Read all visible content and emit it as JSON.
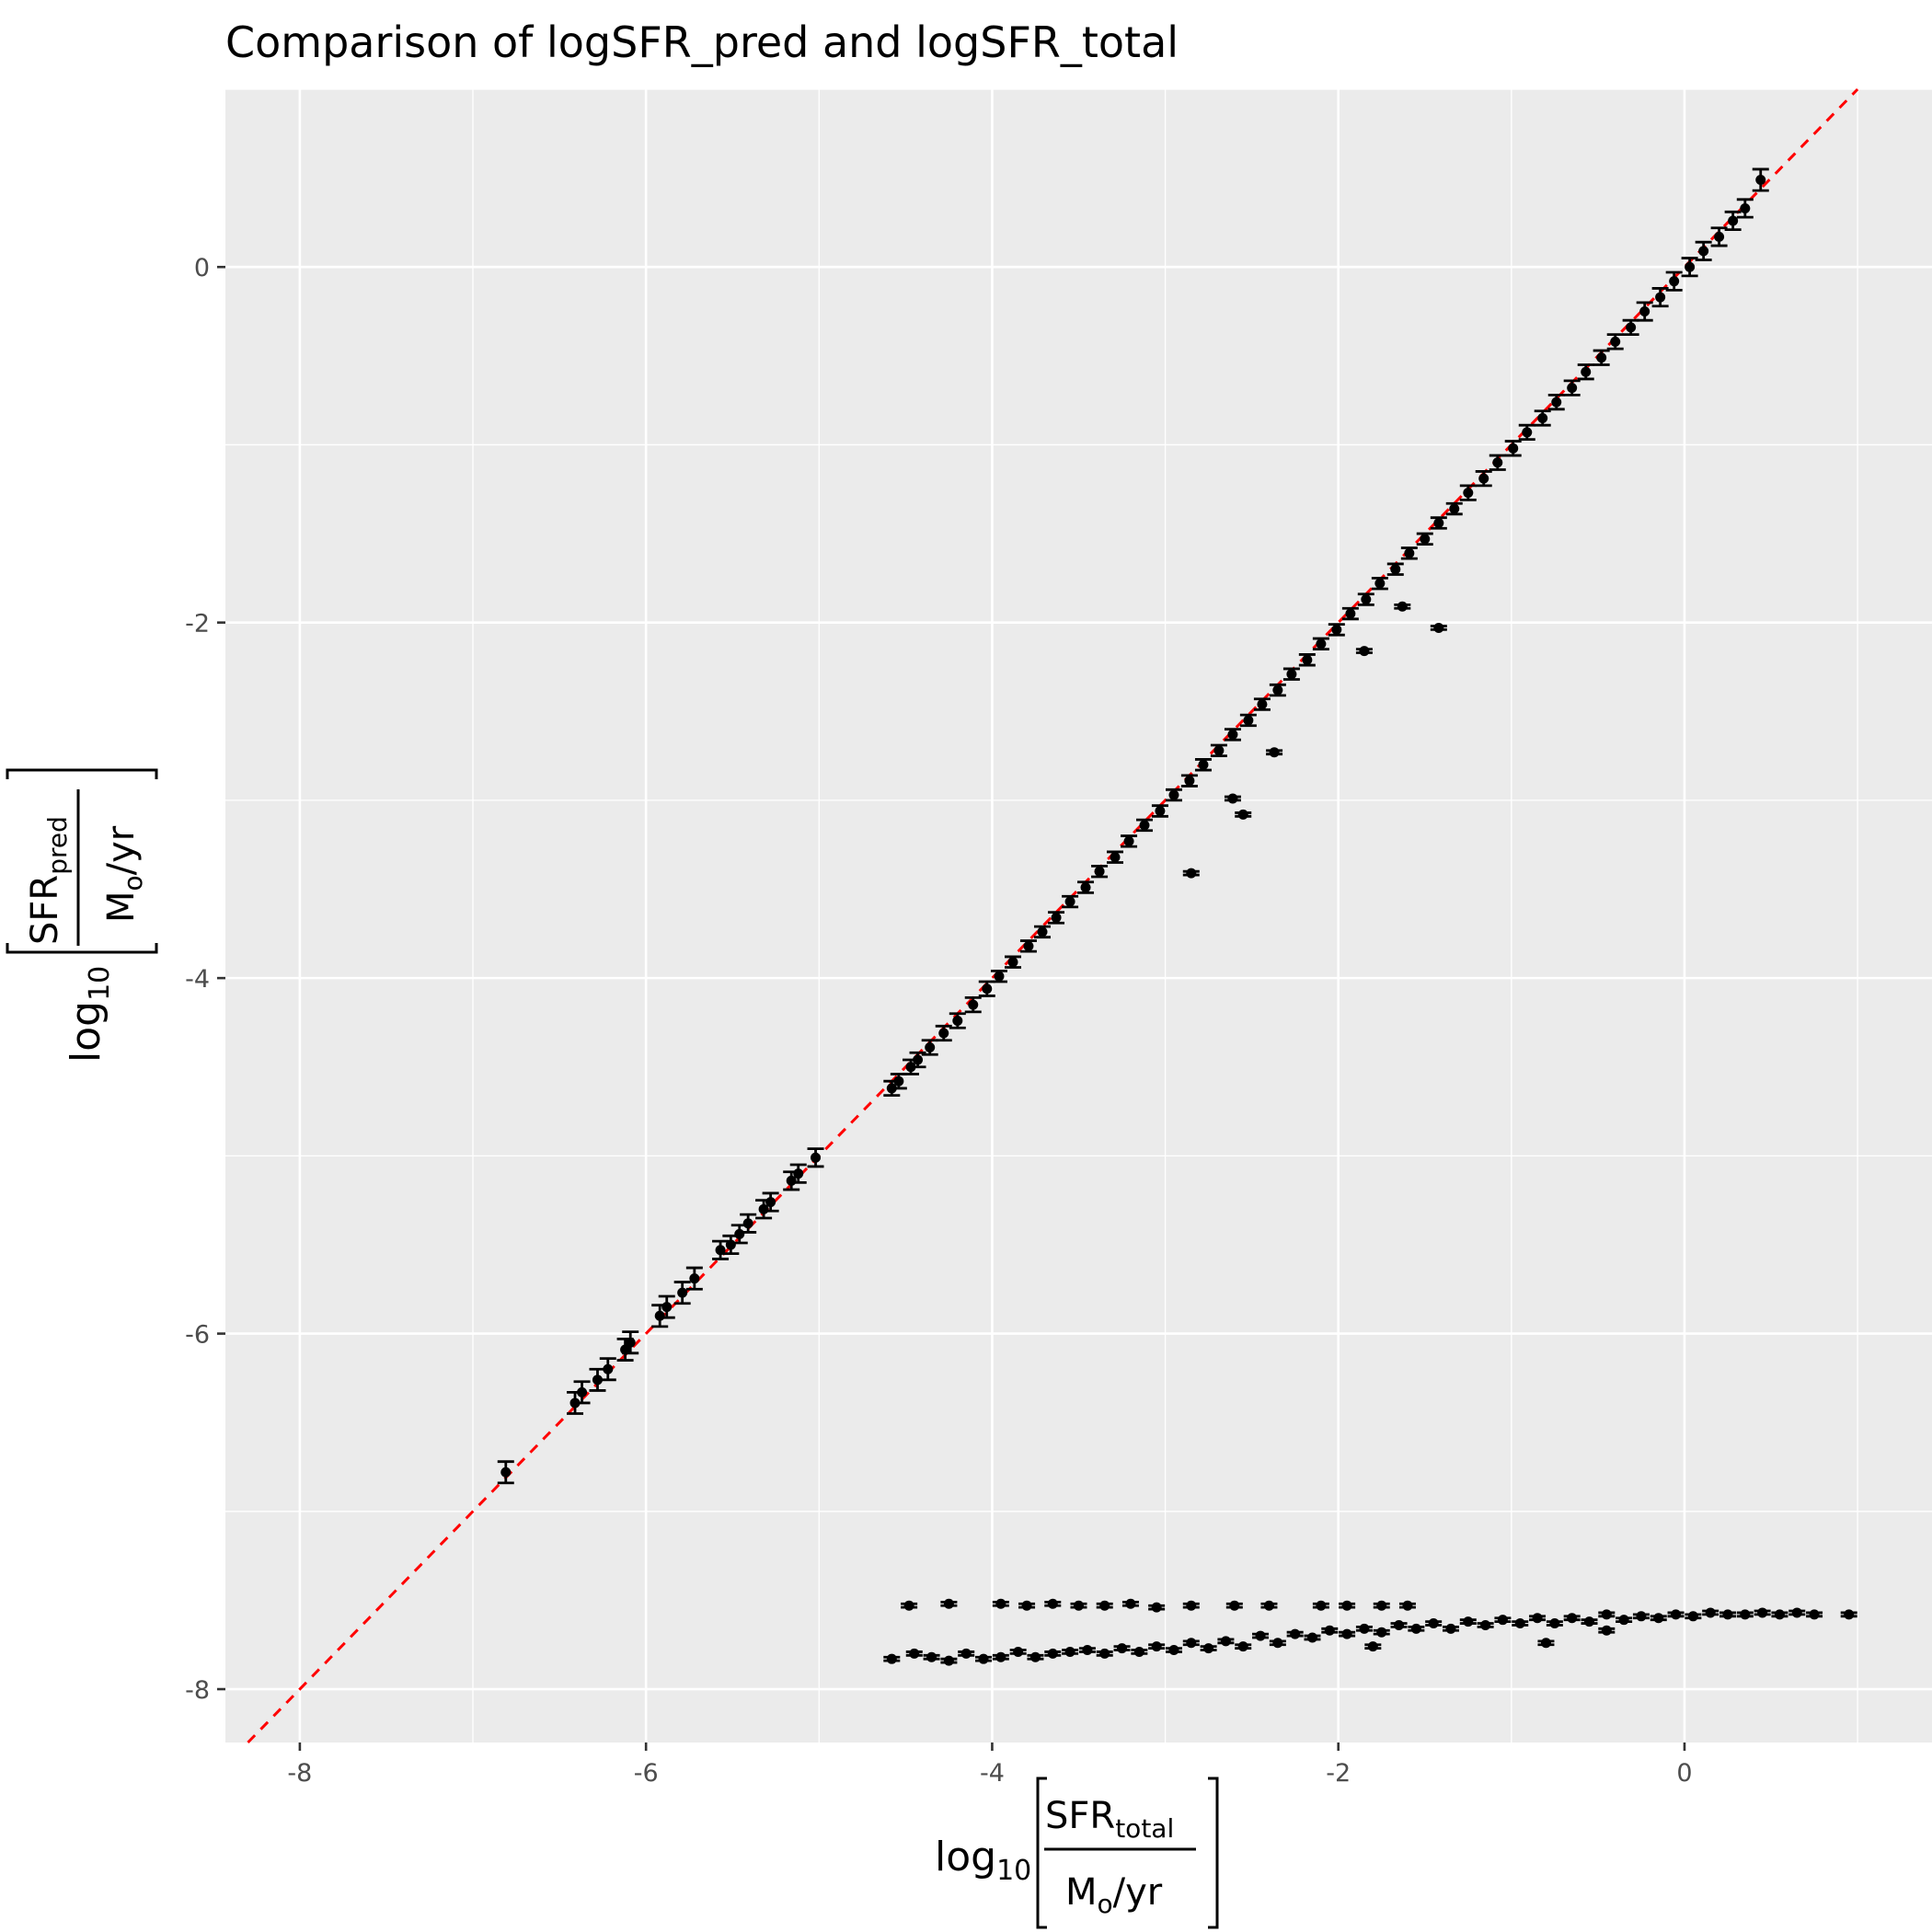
{
  "chart_data": {
    "type": "scatter",
    "title": "Comparison of logSFR_pred and logSFR_total",
    "xlabel": {
      "prefix": "log",
      "prefix_sub": "10",
      "numerator": "SFR",
      "numerator_sub": "total",
      "denominator": "M",
      "denominator_sub": "o",
      "denominator_suffix": "/yr"
    },
    "ylabel": {
      "prefix": "log",
      "prefix_sub": "10",
      "numerator": "SFR",
      "numerator_sub": "pred",
      "denominator": "M",
      "denominator_sub": "o",
      "denominator_suffix": "/yr"
    },
    "xlim": [
      -8.43,
      1.43
    ],
    "ylim": [
      -8.3,
      1.0
    ],
    "x_ticks": [
      -8,
      -6,
      -4,
      -2,
      0
    ],
    "x_tick_labels": [
      "-8",
      "-6",
      "-4",
      "-2",
      "0"
    ],
    "y_ticks": [
      -8,
      -6,
      -4,
      -2,
      0
    ],
    "y_tick_labels": [
      "-8",
      "-6",
      "-4",
      "-2",
      "0"
    ],
    "grid": true,
    "reference_line": {
      "slope": 1,
      "intercept": 0,
      "style": "dashed",
      "color": "#ff0000"
    },
    "colors": {
      "points": "#000000",
      "panel": "#ebebeb",
      "grid": "#ffffff"
    },
    "error_bars": true,
    "series": [
      {
        "x": [
          -6.81,
          -6.41,
          -6.37,
          -6.28,
          -6.22,
          -6.12,
          -6.09,
          -5.92,
          -5.88,
          -5.79,
          -5.72,
          -5.57,
          -5.51,
          -5.46,
          -5.41,
          -5.32,
          -5.28,
          -5.16,
          -5.12,
          -5.02,
          -4.58,
          -4.54,
          -4.47,
          -4.43,
          -4.36,
          -4.28,
          -4.2,
          -4.11,
          -4.03,
          -3.96,
          -3.88,
          -3.79,
          -3.71,
          -3.63,
          -3.55,
          -3.46,
          -3.38,
          -3.29,
          -3.21,
          -3.12,
          -3.03,
          -2.95,
          -2.86,
          -2.78,
          -2.69,
          -2.61,
          -2.52,
          -2.44,
          -2.35,
          -2.27,
          -2.18,
          -2.1,
          -2.01,
          -1.93,
          -1.84,
          -1.76,
          -1.67,
          -1.59,
          -1.5,
          -1.42,
          -1.33,
          -1.25,
          -1.16,
          -1.08,
          -0.99,
          -0.91,
          -0.82,
          -0.74,
          -0.65,
          -0.57,
          -0.48,
          -0.4,
          -0.31,
          -0.23,
          -0.14,
          -0.06,
          0.03,
          0.11,
          0.2,
          0.28,
          0.35,
          0.44
        ],
        "y": [
          -6.78,
          -6.39,
          -6.33,
          -6.26,
          -6.2,
          -6.09,
          -6.05,
          -5.9,
          -5.85,
          -5.77,
          -5.69,
          -5.53,
          -5.5,
          -5.44,
          -5.38,
          -5.3,
          -5.26,
          -5.14,
          -5.1,
          -5.01,
          -4.62,
          -4.58,
          -4.5,
          -4.46,
          -4.39,
          -4.31,
          -4.24,
          -4.15,
          -4.06,
          -3.99,
          -3.91,
          -3.82,
          -3.74,
          -3.66,
          -3.57,
          -3.49,
          -3.4,
          -3.32,
          -3.23,
          -3.14,
          -3.06,
          -2.97,
          -2.89,
          -2.8,
          -2.72,
          -2.63,
          -2.55,
          -2.46,
          -2.38,
          -2.29,
          -2.21,
          -2.12,
          -2.04,
          -1.95,
          -1.87,
          -1.78,
          -1.7,
          -1.61,
          -1.53,
          -1.44,
          -1.36,
          -1.27,
          -1.19,
          -1.1,
          -1.02,
          -0.93,
          -0.85,
          -0.76,
          -0.68,
          -0.59,
          -0.51,
          -0.42,
          -0.34,
          -0.25,
          -0.17,
          -0.08,
          0.0,
          0.09,
          0.17,
          0.26,
          0.33,
          0.49
        ],
        "err": [
          0.06,
          0.06,
          0.06,
          0.06,
          0.06,
          0.06,
          0.06,
          0.06,
          0.06,
          0.06,
          0.06,
          0.05,
          0.05,
          0.05,
          0.05,
          0.05,
          0.05,
          0.05,
          0.05,
          0.05,
          0.04,
          0.04,
          0.04,
          0.04,
          0.04,
          0.04,
          0.04,
          0.04,
          0.04,
          0.03,
          0.03,
          0.03,
          0.03,
          0.03,
          0.03,
          0.03,
          0.03,
          0.03,
          0.03,
          0.03,
          0.03,
          0.03,
          0.03,
          0.03,
          0.03,
          0.03,
          0.03,
          0.03,
          0.03,
          0.03,
          0.03,
          0.03,
          0.03,
          0.03,
          0.03,
          0.03,
          0.03,
          0.03,
          0.03,
          0.03,
          0.03,
          0.04,
          0.04,
          0.04,
          0.04,
          0.04,
          0.04,
          0.04,
          0.04,
          0.04,
          0.04,
          0.04,
          0.04,
          0.05,
          0.05,
          0.05,
          0.05,
          0.05,
          0.05,
          0.05,
          0.05,
          0.06
        ]
      },
      {
        "x": [
          -1.42,
          -1.85,
          -1.63,
          -2.37,
          -2.61,
          -2.55,
          -2.85
        ],
        "y": [
          -2.03,
          -2.16,
          -1.91,
          -2.73,
          -2.99,
          -3.08,
          -3.41
        ],
        "err": [
          0.01,
          0.01,
          0.01,
          0.01,
          0.01,
          0.01,
          0.01
        ]
      },
      {
        "x": [
          -4.48,
          -4.25,
          -3.95,
          -3.8,
          -3.65,
          -3.5,
          -3.35,
          -3.2,
          -3.05,
          -2.85,
          -2.6,
          -2.4,
          -2.1,
          -1.95,
          -1.75,
          -1.6
        ],
        "y": [
          -7.53,
          -7.52,
          -7.52,
          -7.53,
          -7.52,
          -7.53,
          -7.53,
          -7.52,
          -7.54,
          -7.53,
          -7.53,
          -7.53,
          -7.53,
          -7.53,
          -7.53,
          -7.53
        ],
        "err": [
          0.01,
          0.01,
          0.01,
          0.01,
          0.01,
          0.01,
          0.01,
          0.01,
          0.01,
          0.01,
          0.01,
          0.01,
          0.01,
          0.01,
          0.01,
          0.01
        ]
      },
      {
        "x": [
          -4.58,
          -4.45,
          -4.35,
          -4.25,
          -4.15,
          -4.05,
          -3.95,
          -3.85,
          -3.75,
          -3.65,
          -3.55,
          -3.45,
          -3.35,
          -3.25,
          -3.15,
          -3.05,
          -2.95,
          -2.85,
          -2.75,
          -2.65,
          -2.55,
          -2.45,
          -2.35,
          -2.25,
          -2.15,
          -2.05,
          -1.95,
          -1.85,
          -1.75,
          -1.65,
          -1.55,
          -1.45,
          -1.35,
          -1.25,
          -1.15,
          -1.05,
          -0.95,
          -0.85,
          -0.75,
          -0.65,
          -0.55,
          -0.45,
          -0.35,
          -0.25,
          -0.15,
          -0.05,
          0.05,
          0.15,
          0.25,
          0.35,
          0.45,
          0.55,
          0.65,
          0.75,
          0.95,
          -0.8,
          -1.8,
          -0.45
        ],
        "y": [
          -7.83,
          -7.8,
          -7.82,
          -7.84,
          -7.8,
          -7.83,
          -7.82,
          -7.79,
          -7.82,
          -7.8,
          -7.79,
          -7.78,
          -7.8,
          -7.77,
          -7.79,
          -7.76,
          -7.78,
          -7.74,
          -7.77,
          -7.73,
          -7.76,
          -7.7,
          -7.74,
          -7.69,
          -7.71,
          -7.67,
          -7.69,
          -7.66,
          -7.68,
          -7.64,
          -7.66,
          -7.63,
          -7.66,
          -7.62,
          -7.64,
          -7.61,
          -7.63,
          -7.6,
          -7.63,
          -7.6,
          -7.62,
          -7.58,
          -7.61,
          -7.59,
          -7.6,
          -7.58,
          -7.59,
          -7.57,
          -7.58,
          -7.58,
          -7.57,
          -7.58,
          -7.57,
          -7.58,
          -7.58,
          -7.74,
          -7.76,
          -7.67
        ],
        "err": [
          0.01,
          0.01,
          0.01,
          0.01,
          0.01,
          0.01,
          0.01,
          0.01,
          0.01,
          0.01,
          0.01,
          0.01,
          0.01,
          0.01,
          0.01,
          0.01,
          0.01,
          0.01,
          0.01,
          0.01,
          0.01,
          0.01,
          0.01,
          0.01,
          0.01,
          0.01,
          0.01,
          0.01,
          0.01,
          0.01,
          0.01,
          0.01,
          0.01,
          0.01,
          0.01,
          0.01,
          0.01,
          0.01,
          0.01,
          0.01,
          0.01,
          0.01,
          0.01,
          0.01,
          0.01,
          0.01,
          0.01,
          0.01,
          0.01,
          0.01,
          0.01,
          0.01,
          0.01,
          0.01,
          0.01,
          0.01,
          0.01,
          0.01
        ]
      }
    ]
  }
}
